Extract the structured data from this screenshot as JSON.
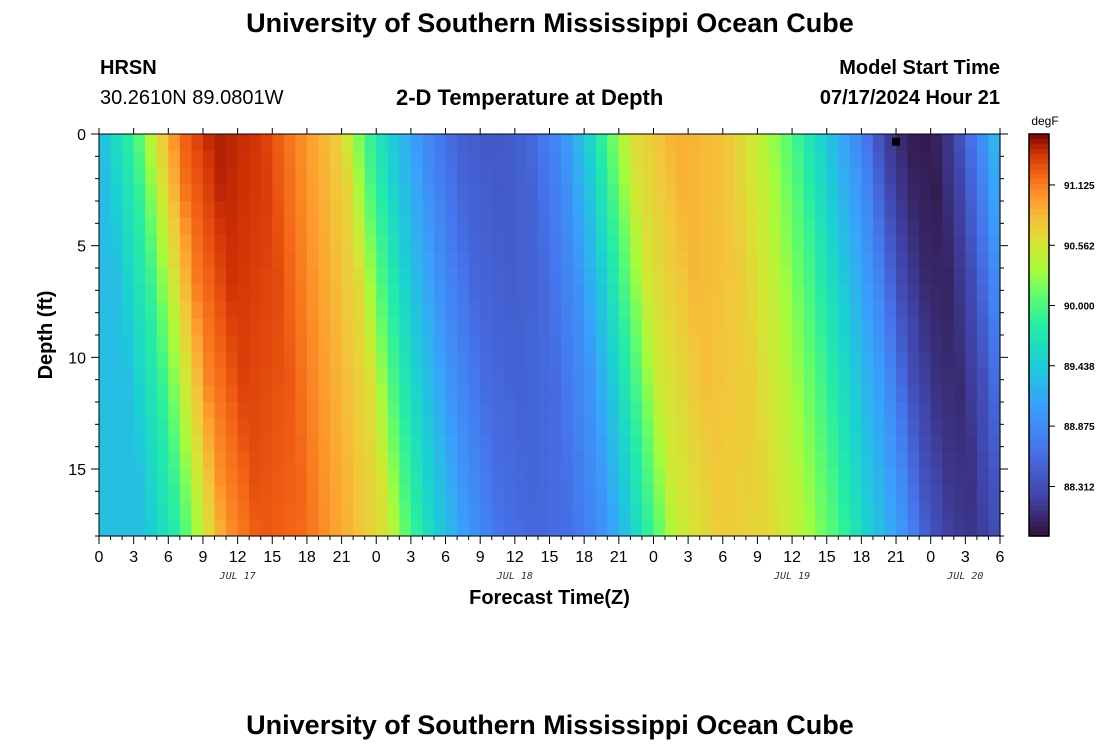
{
  "page": {
    "title_top": "University of Southern Mississippi Ocean Cube",
    "title_bottom": "University of Southern Mississippi Ocean Cube"
  },
  "header": {
    "station_code": "HRSN",
    "station_coords": "30.2610N  89.0801W",
    "subtitle": "2-D Temperature at Depth",
    "model_start_label": "Model Start Time",
    "model_start_value": "07/17/2024 Hour 21"
  },
  "chart_data": {
    "type": "heatmap",
    "title": "2-D Temperature at Depth",
    "xlabel": "Forecast Time(Z)",
    "ylabel": "Depth (ft)",
    "x_hours_start": 0,
    "x_hours_end": 78,
    "x_tick_hours": [
      0,
      3,
      6,
      9,
      12,
      15,
      18,
      21,
      24,
      27,
      30,
      33,
      36,
      39,
      42,
      45,
      48,
      51,
      54,
      57,
      60,
      63,
      66,
      69,
      72,
      75,
      78
    ],
    "x_tick_labels": [
      "0",
      "3",
      "6",
      "9",
      "12",
      "15",
      "18",
      "21",
      "0",
      "3",
      "6",
      "9",
      "12",
      "15",
      "18",
      "21",
      "0",
      "3",
      "6",
      "9",
      "12",
      "15",
      "18",
      "21",
      "0",
      "3",
      "6"
    ],
    "date_labels": [
      {
        "text": "JUL 17",
        "hour": 12
      },
      {
        "text": "JUL 18",
        "hour": 36
      },
      {
        "text": "JUL 19",
        "hour": 60
      },
      {
        "text": "JUL 20",
        "hour": 75
      }
    ],
    "y_range_ft": [
      0,
      18
    ],
    "y_ticks": [
      0,
      5,
      10,
      15
    ],
    "y_tick_labels": [
      "0",
      "5",
      "10",
      "15"
    ],
    "colorbar": {
      "unit": "degF",
      "min": 87.85,
      "max": 91.6,
      "ticks": [
        88.312,
        88.875,
        89.438,
        90.0,
        90.562,
        91.125
      ],
      "tick_labels": [
        "88.312",
        "88.875",
        "89.438",
        "90.000",
        "90.562",
        "91.125"
      ]
    },
    "surface_temperature_profile": [
      {
        "hour": 0,
        "degF": 89.3
      },
      {
        "hour": 3,
        "degF": 89.9
      },
      {
        "hour": 5,
        "degF": 90.6
      },
      {
        "hour": 7,
        "degF": 91.2
      },
      {
        "hour": 10,
        "degF": 91.5
      },
      {
        "hour": 14,
        "degF": 91.4
      },
      {
        "hour": 18,
        "degF": 91.0
      },
      {
        "hour": 21,
        "degF": 90.7
      },
      {
        "hour": 23,
        "degF": 90.0
      },
      {
        "hour": 25,
        "degF": 89.5
      },
      {
        "hour": 28,
        "degF": 88.9
      },
      {
        "hour": 31,
        "degF": 88.5
      },
      {
        "hour": 34,
        "degF": 88.4
      },
      {
        "hour": 37,
        "degF": 88.5
      },
      {
        "hour": 40,
        "degF": 88.9
      },
      {
        "hour": 42,
        "degF": 89.4
      },
      {
        "hour": 44,
        "degF": 90.0
      },
      {
        "hour": 46,
        "degF": 90.6
      },
      {
        "hour": 50,
        "degF": 90.9
      },
      {
        "hour": 54,
        "degF": 90.8
      },
      {
        "hour": 57,
        "degF": 90.5
      },
      {
        "hour": 60,
        "degF": 90.0
      },
      {
        "hour": 63,
        "degF": 89.4
      },
      {
        "hour": 66,
        "degF": 88.8
      },
      {
        "hour": 68,
        "degF": 88.2
      },
      {
        "hour": 70,
        "degF": 87.95
      },
      {
        "hour": 72,
        "degF": 87.9
      },
      {
        "hour": 74,
        "degF": 88.2
      },
      {
        "hour": 76,
        "degF": 88.8
      },
      {
        "hour": 78,
        "degF": 89.4
      }
    ],
    "depth_phase_lag_hours_at_bottom": 4,
    "depth_bottom_damping_degF": 0.5,
    "marker": {
      "hour": 69,
      "depth_ft": 0.3
    }
  }
}
